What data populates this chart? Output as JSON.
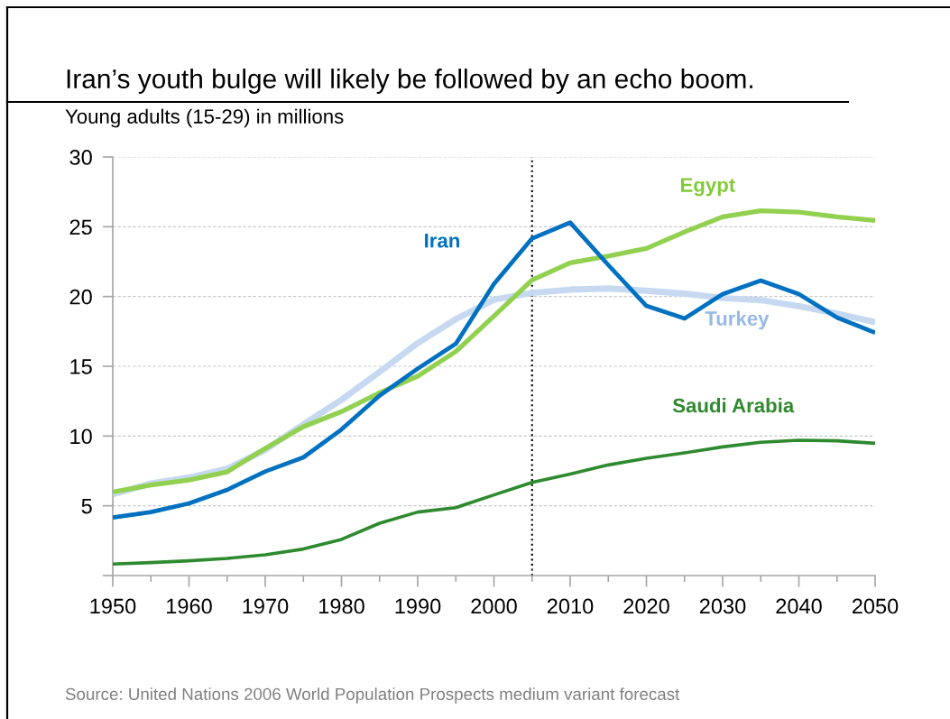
{
  "chart_data": {
    "type": "line",
    "title": "Iran’s youth bulge will likely be followed by an echo boom.",
    "ylabel": "Young adults (15-29) in millions",
    "x": [
      1950,
      1955,
      1960,
      1965,
      1970,
      1975,
      1980,
      1985,
      1990,
      1995,
      2000,
      2005,
      2010,
      2015,
      2020,
      2025,
      2030,
      2035,
      2040,
      2045,
      2050
    ],
    "series": [
      {
        "name": "Saudi Arabia",
        "color": "#2e8a2e",
        "values": [
          0.82,
          0.93,
          1.06,
          1.23,
          1.49,
          1.9,
          2.59,
          3.75,
          4.55,
          4.87,
          5.78,
          6.68,
          7.28,
          7.93,
          8.4,
          8.79,
          9.22,
          9.55,
          9.7,
          9.66,
          9.48
        ]
      },
      {
        "name": "Turkey",
        "color": "#c6d9f1",
        "values": [
          5.82,
          6.6,
          7.03,
          7.65,
          9.01,
          10.84,
          12.6,
          14.6,
          16.66,
          18.38,
          19.78,
          20.26,
          20.49,
          20.58,
          20.41,
          20.21,
          19.89,
          19.74,
          19.31,
          18.77,
          18.16
        ]
      },
      {
        "name": "Egypt",
        "color": "#92d050",
        "values": [
          5.99,
          6.49,
          6.85,
          7.43,
          9.11,
          10.67,
          11.75,
          13.1,
          14.29,
          16.06,
          18.6,
          21.18,
          22.41,
          22.9,
          23.45,
          24.63,
          25.71,
          26.14,
          26.05,
          25.71,
          25.45
        ]
      },
      {
        "name": "Iran",
        "color": "#0070c0",
        "values": [
          4.16,
          4.55,
          5.17,
          6.14,
          7.46,
          8.47,
          10.47,
          12.9,
          14.83,
          16.61,
          20.9,
          24.16,
          25.3,
          22.26,
          19.33,
          18.42,
          20.17,
          21.14,
          20.17,
          18.49,
          17.41
        ]
      }
    ],
    "xlim": [
      1950,
      2050
    ],
    "xticks": [
      1950,
      {
        "value": 1955,
        "label": null
      },
      1960,
      {
        "value": 1965,
        "label": null
      },
      1970,
      {
        "value": 1975,
        "label": null
      },
      1980,
      {
        "value": 1985,
        "label": null
      },
      1990,
      {
        "value": 1995,
        "label": null
      },
      2000,
      {
        "value": 2005,
        "label": null
      },
      2010,
      {
        "value": 2015,
        "label": null
      },
      2020,
      {
        "value": 2025,
        "label": null
      },
      2030,
      {
        "value": 2035,
        "label": null
      },
      2040,
      {
        "value": 2045,
        "label": null
      },
      2050
    ],
    "ylim": [
      0,
      30
    ],
    "yticks": [
      {
        "value": 0,
        "label": null
      },
      5,
      10,
      15,
      20,
      25,
      30
    ],
    "grid": "y",
    "ref_lines": [
      {
        "axis": "x",
        "value": 2005,
        "color": "#000000",
        "line_style": "dotted"
      }
    ],
    "annotations": [
      "Source: United Nations 2006 World Population Prospects medium variant forecast"
    ]
  }
}
